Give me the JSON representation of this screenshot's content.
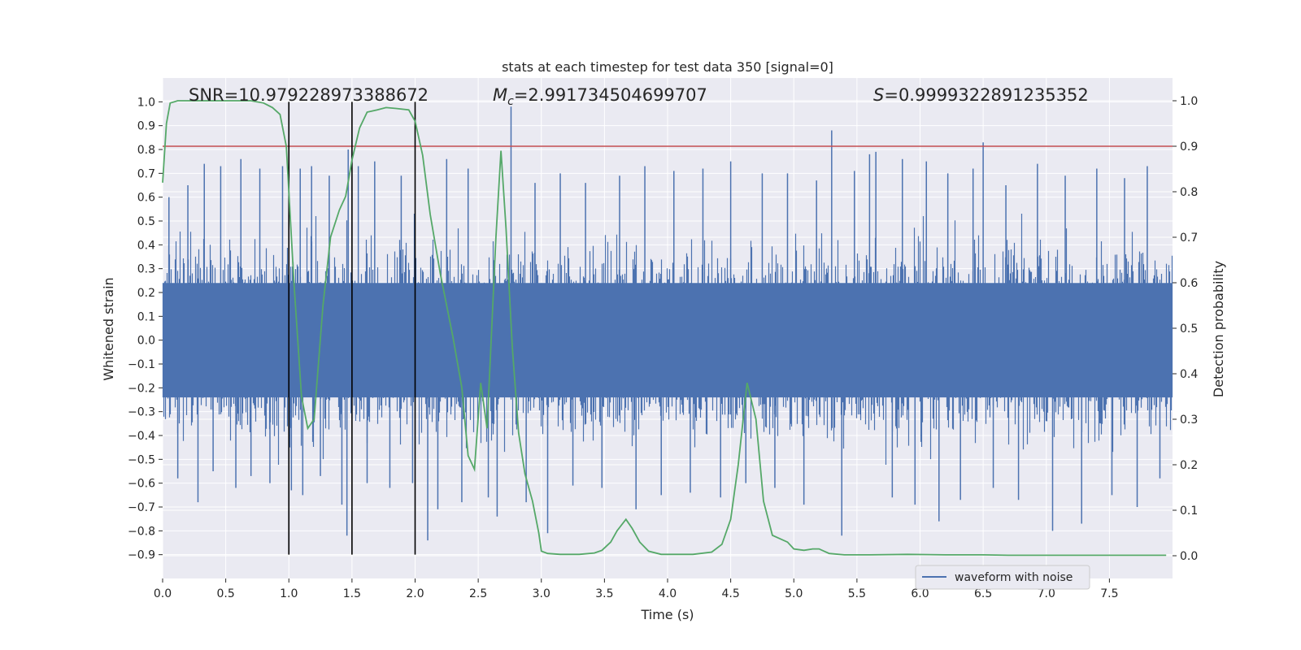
{
  "chart_data": {
    "type": "line",
    "title": "stats at each timestep for test data 350 [signal=0]",
    "xlabel": "Time (s)",
    "ylabel": "Whitened strain",
    "y2label": "Detection probability",
    "xlim": [
      0.0,
      8.0
    ],
    "ylim": [
      -1.0,
      1.1
    ],
    "y2lim": [
      -0.05,
      1.05
    ],
    "x_ticks": [
      0.0,
      0.5,
      1.0,
      1.5,
      2.0,
      2.5,
      3.0,
      3.5,
      4.0,
      4.5,
      5.0,
      5.5,
      6.0,
      6.5,
      7.0,
      7.5
    ],
    "x_tick_labels": [
      "0.0",
      "0.5",
      "1.0",
      "1.5",
      "2.0",
      "2.5",
      "3.0",
      "3.5",
      "4.0",
      "4.5",
      "5.0",
      "5.5",
      "6.0",
      "6.5",
      "7.0",
      "7.5"
    ],
    "y_ticks": [
      -0.9,
      -0.8,
      -0.7,
      -0.6,
      -0.5,
      -0.4,
      -0.3,
      -0.2,
      -0.1,
      0.0,
      0.1,
      0.2,
      0.3,
      0.4,
      0.5,
      0.6,
      0.7,
      0.8,
      0.9,
      1.0
    ],
    "y_tick_labels": [
      "−0.9",
      "−0.8",
      "−0.7",
      "−0.6",
      "−0.5",
      "−0.4",
      "−0.3",
      "−0.2",
      "−0.1",
      "0.0",
      "0.1",
      "0.2",
      "0.3",
      "0.4",
      "0.5",
      "0.6",
      "0.7",
      "0.8",
      "0.9",
      "1.0"
    ],
    "y2_ticks": [
      0.0,
      0.1,
      0.2,
      0.3,
      0.4,
      0.5,
      0.6,
      0.7,
      0.8,
      0.9,
      1.0
    ],
    "y2_tick_labels": [
      "0.0",
      "0.1",
      "0.2",
      "0.3",
      "0.4",
      "0.5",
      "0.6",
      "0.7",
      "0.8",
      "0.9",
      "1.0"
    ],
    "grid": true,
    "legend": {
      "placement": "bottom-right",
      "entries": [
        "waveform with noise"
      ]
    },
    "annotations": {
      "snr": "SNR=10.979228973388672",
      "mc_symbol": "M",
      "mc_sub": "c",
      "mc_value": "=2.991734504699707",
      "s_symbol": "S",
      "s_value": "=0.9999322891235352"
    },
    "vertical_lines_x": [
      1.0,
      1.5,
      2.0
    ],
    "vertical_lines_range": [
      -0.9,
      1.0
    ],
    "threshold_probability": 0.9,
    "waveform": {
      "name": "waveform with noise",
      "color": "#4c72b0",
      "sample_rate_hz": 1024,
      "core_amplitude": 0.3,
      "spikes": [
        {
          "x": 0.05,
          "y": 0.6
        },
        {
          "x": 0.12,
          "y": -0.58
        },
        {
          "x": 0.2,
          "y": 0.65
        },
        {
          "x": 0.28,
          "y": -0.68
        },
        {
          "x": 0.33,
          "y": 0.74
        },
        {
          "x": 0.4,
          "y": -0.55
        },
        {
          "x": 0.46,
          "y": 0.73
        },
        {
          "x": 0.58,
          "y": -0.62
        },
        {
          "x": 0.62,
          "y": 0.76
        },
        {
          "x": 0.7,
          "y": -0.57
        },
        {
          "x": 0.77,
          "y": 0.72
        },
        {
          "x": 0.85,
          "y": -0.6
        },
        {
          "x": 0.95,
          "y": 0.73
        },
        {
          "x": 1.02,
          "y": -0.63
        },
        {
          "x": 1.09,
          "y": 0.72
        },
        {
          "x": 1.11,
          "y": -0.65
        },
        {
          "x": 1.18,
          "y": 0.73
        },
        {
          "x": 1.25,
          "y": -0.57
        },
        {
          "x": 1.32,
          "y": 0.69
        },
        {
          "x": 1.42,
          "y": -0.69
        },
        {
          "x": 1.46,
          "y": -0.82
        },
        {
          "x": 1.47,
          "y": 0.8
        },
        {
          "x": 1.55,
          "y": 0.73
        },
        {
          "x": 1.62,
          "y": -0.6
        },
        {
          "x": 1.68,
          "y": 0.75
        },
        {
          "x": 1.8,
          "y": -0.62
        },
        {
          "x": 1.89,
          "y": 0.69
        },
        {
          "x": 1.98,
          "y": -0.6
        },
        {
          "x": 2.1,
          "y": -0.84
        },
        {
          "x": 2.18,
          "y": -0.71
        },
        {
          "x": 2.25,
          "y": 0.76
        },
        {
          "x": 2.37,
          "y": -0.68
        },
        {
          "x": 2.42,
          "y": 0.72
        },
        {
          "x": 2.58,
          "y": -0.66
        },
        {
          "x": 2.65,
          "y": -0.74
        },
        {
          "x": 2.76,
          "y": 0.98
        },
        {
          "x": 2.88,
          "y": -0.68
        },
        {
          "x": 2.95,
          "y": 0.66
        },
        {
          "x": 3.05,
          "y": -0.81
        },
        {
          "x": 3.15,
          "y": 0.7
        },
        {
          "x": 3.25,
          "y": -0.61
        },
        {
          "x": 3.35,
          "y": 0.66
        },
        {
          "x": 3.48,
          "y": -0.62
        },
        {
          "x": 3.62,
          "y": 0.69
        },
        {
          "x": 3.75,
          "y": -0.71
        },
        {
          "x": 3.82,
          "y": 0.73
        },
        {
          "x": 3.95,
          "y": -0.65
        },
        {
          "x": 4.05,
          "y": 0.71
        },
        {
          "x": 4.18,
          "y": -0.64
        },
        {
          "x": 4.28,
          "y": 0.72
        },
        {
          "x": 4.42,
          "y": -0.66
        },
        {
          "x": 4.5,
          "y": 0.75
        },
        {
          "x": 4.62,
          "y": -0.6
        },
        {
          "x": 4.75,
          "y": 0.7
        },
        {
          "x": 4.85,
          "y": -0.62
        },
        {
          "x": 4.95,
          "y": 0.7
        },
        {
          "x": 5.08,
          "y": -0.69
        },
        {
          "x": 5.18,
          "y": 0.67
        },
        {
          "x": 5.3,
          "y": 0.88
        },
        {
          "x": 5.38,
          "y": -0.82
        },
        {
          "x": 5.48,
          "y": 0.71
        },
        {
          "x": 5.6,
          "y": 0.78
        },
        {
          "x": 5.65,
          "y": 0.79
        },
        {
          "x": 5.78,
          "y": -0.66
        },
        {
          "x": 5.86,
          "y": 0.76
        },
        {
          "x": 5.96,
          "y": -0.69
        },
        {
          "x": 6.05,
          "y": 0.75
        },
        {
          "x": 6.15,
          "y": -0.76
        },
        {
          "x": 6.22,
          "y": 0.7
        },
        {
          "x": 6.32,
          "y": -0.67
        },
        {
          "x": 6.42,
          "y": 0.72
        },
        {
          "x": 6.5,
          "y": 0.83
        },
        {
          "x": 6.58,
          "y": -0.62
        },
        {
          "x": 6.68,
          "y": 0.65
        },
        {
          "x": 6.78,
          "y": -0.67
        },
        {
          "x": 6.93,
          "y": 0.74
        },
        {
          "x": 7.05,
          "y": -0.8
        },
        {
          "x": 7.15,
          "y": 0.69
        },
        {
          "x": 7.28,
          "y": -0.77
        },
        {
          "x": 7.4,
          "y": 0.72
        },
        {
          "x": 7.52,
          "y": -0.65
        },
        {
          "x": 7.62,
          "y": 0.68
        },
        {
          "x": 7.72,
          "y": -0.7
        },
        {
          "x": 7.8,
          "y": 0.73
        },
        {
          "x": 7.9,
          "y": -0.58
        }
      ]
    },
    "probability": {
      "color": "#55a868",
      "points": [
        [
          0.0,
          0.82
        ],
        [
          0.03,
          0.95
        ],
        [
          0.06,
          0.995
        ],
        [
          0.12,
          1.0
        ],
        [
          0.5,
          1.0
        ],
        [
          0.7,
          1.0
        ],
        [
          0.8,
          0.995
        ],
        [
          0.87,
          0.985
        ],
        [
          0.93,
          0.97
        ],
        [
          0.98,
          0.9
        ],
        [
          1.04,
          0.6
        ],
        [
          1.1,
          0.35
        ],
        [
          1.15,
          0.28
        ],
        [
          1.2,
          0.3
        ],
        [
          1.27,
          0.55
        ],
        [
          1.33,
          0.7
        ],
        [
          1.4,
          0.76
        ],
        [
          1.45,
          0.79
        ],
        [
          1.5,
          0.87
        ],
        [
          1.56,
          0.94
        ],
        [
          1.62,
          0.975
        ],
        [
          1.7,
          0.98
        ],
        [
          1.77,
          0.985
        ],
        [
          1.85,
          0.983
        ],
        [
          1.95,
          0.98
        ],
        [
          2.0,
          0.955
        ],
        [
          2.06,
          0.88
        ],
        [
          2.12,
          0.75
        ],
        [
          2.2,
          0.62
        ],
        [
          2.3,
          0.48
        ],
        [
          2.37,
          0.37
        ],
        [
          2.42,
          0.22
        ],
        [
          2.47,
          0.19
        ],
        [
          2.52,
          0.38
        ],
        [
          2.57,
          0.28
        ],
        [
          2.6,
          0.46
        ],
        [
          2.64,
          0.7
        ],
        [
          2.68,
          0.89
        ],
        [
          2.72,
          0.72
        ],
        [
          2.77,
          0.46
        ],
        [
          2.82,
          0.27
        ],
        [
          2.87,
          0.18
        ],
        [
          2.93,
          0.12
        ],
        [
          2.98,
          0.05
        ],
        [
          3.0,
          0.01
        ],
        [
          3.05,
          0.005
        ],
        [
          3.15,
          0.003
        ],
        [
          3.3,
          0.003
        ],
        [
          3.42,
          0.006
        ],
        [
          3.48,
          0.012
        ],
        [
          3.55,
          0.03
        ],
        [
          3.6,
          0.055
        ],
        [
          3.67,
          0.08
        ],
        [
          3.72,
          0.06
        ],
        [
          3.78,
          0.03
        ],
        [
          3.85,
          0.01
        ],
        [
          3.95,
          0.003
        ],
        [
          4.2,
          0.003
        ],
        [
          4.35,
          0.008
        ],
        [
          4.43,
          0.025
        ],
        [
          4.5,
          0.08
        ],
        [
          4.56,
          0.2
        ],
        [
          4.63,
          0.38
        ],
        [
          4.7,
          0.3
        ],
        [
          4.76,
          0.12
        ],
        [
          4.83,
          0.045
        ],
        [
          4.95,
          0.03
        ],
        [
          5.0,
          0.015
        ],
        [
          5.08,
          0.012
        ],
        [
          5.15,
          0.015
        ],
        [
          5.2,
          0.015
        ],
        [
          5.28,
          0.005
        ],
        [
          5.4,
          0.002
        ],
        [
          5.6,
          0.002
        ],
        [
          5.9,
          0.003
        ],
        [
          6.2,
          0.002
        ],
        [
          6.5,
          0.002
        ],
        [
          6.7,
          0.001
        ],
        [
          7.0,
          0.001
        ],
        [
          7.3,
          0.001
        ],
        [
          7.6,
          0.001
        ],
        [
          7.95,
          0.001
        ]
      ]
    },
    "colors": {
      "plot_background": "#eaeaf2",
      "grid": "#ffffff",
      "threshold": "#c44e52",
      "vertical_lines": "#000000"
    }
  }
}
